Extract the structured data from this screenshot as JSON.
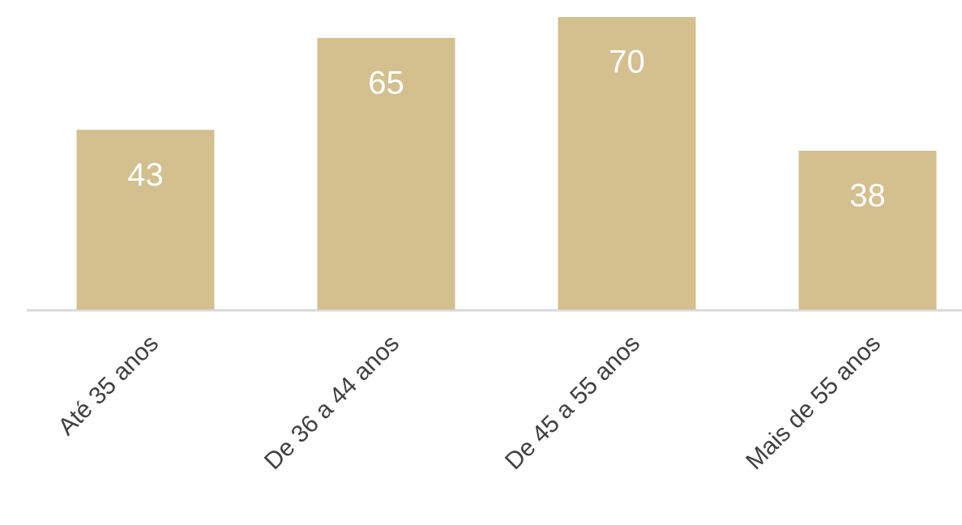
{
  "chart_data": {
    "type": "bar",
    "categories": [
      "Até 35 anos",
      "De 36 a 44 anos",
      "De 45 a 55 anos",
      "Mais de 55 anos"
    ],
    "values": [
      43,
      65,
      70,
      38
    ],
    "color": "#d4bf8e"
  }
}
